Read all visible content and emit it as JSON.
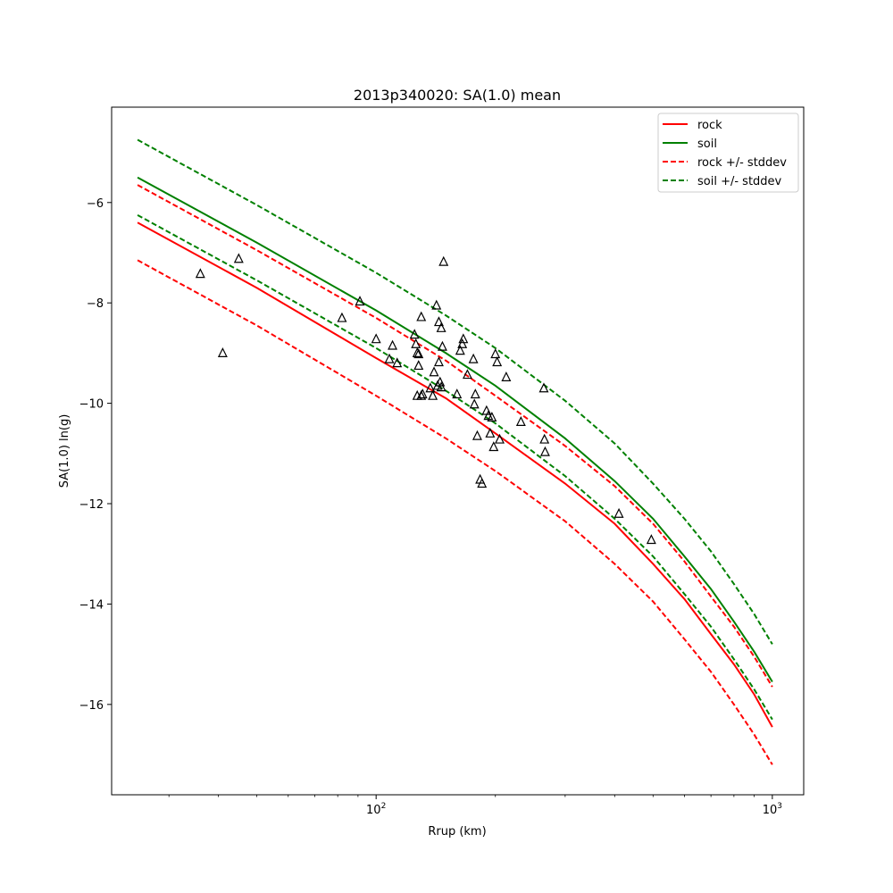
{
  "chart_data": {
    "type": "scatter",
    "title": "2013p340020: SA(1.0) mean",
    "xlabel": "Rrup (km)",
    "ylabel": "SA(1.0) ln(g)",
    "x_scale": "log",
    "xlim": [
      21.5,
      1200
    ],
    "ylim": [
      -17.8,
      -4.1
    ],
    "x_major_ticks": [
      {
        "value": 100,
        "base": "10",
        "exp": "2"
      },
      {
        "value": 1000,
        "base": "10",
        "exp": "3"
      }
    ],
    "y_ticks": [
      -16,
      -14,
      -12,
      -10,
      -8,
      -6
    ],
    "grid": false,
    "legend_placement": "top-right",
    "colors": {
      "rock": "#ff0000",
      "soil": "#008000",
      "points": "#000000"
    },
    "series": [
      {
        "name": "rock",
        "style": "solid",
        "color": "#ff0000",
        "x": [
          25,
          50,
          100,
          150,
          200,
          300,
          400,
          500,
          600,
          700,
          800,
          900,
          1000
        ],
        "y": [
          -6.4,
          -7.7,
          -9.1,
          -9.9,
          -10.6,
          -11.6,
          -12.4,
          -13.2,
          -13.9,
          -14.6,
          -15.2,
          -15.8,
          -16.45
        ]
      },
      {
        "name": "soil",
        "style": "solid",
        "color": "#008000",
        "x": [
          25,
          50,
          100,
          150,
          200,
          300,
          400,
          500,
          600,
          700,
          800,
          900,
          1000
        ],
        "y": [
          -5.5,
          -6.8,
          -8.15,
          -9.0,
          -9.65,
          -10.7,
          -11.55,
          -12.3,
          -13.05,
          -13.7,
          -14.35,
          -14.95,
          -15.55
        ]
      },
      {
        "name": "rock +/- stddev",
        "style": "dashed",
        "color": "#ff0000",
        "upper": {
          "x": [
            25,
            50,
            100,
            150,
            200,
            300,
            400,
            500,
            600,
            700,
            800,
            900,
            1000
          ],
          "y": [
            -5.65,
            -6.95,
            -8.3,
            -9.15,
            -9.85,
            -10.85,
            -11.65,
            -12.4,
            -13.15,
            -13.85,
            -14.45,
            -15.05,
            -15.65
          ]
        },
        "lower": {
          "x": [
            25,
            50,
            100,
            150,
            200,
            300,
            400,
            500,
            600,
            700,
            800,
            900,
            1000
          ],
          "y": [
            -7.15,
            -8.45,
            -9.85,
            -10.7,
            -11.35,
            -12.35,
            -13.2,
            -13.95,
            -14.7,
            -15.35,
            -16.0,
            -16.6,
            -17.2
          ]
        }
      },
      {
        "name": "soil +/- stddev",
        "style": "dashed",
        "color": "#008000",
        "upper": {
          "x": [
            25,
            50,
            100,
            150,
            200,
            300,
            400,
            500,
            600,
            700,
            800,
            900,
            1000
          ],
          "y": [
            -4.75,
            -6.05,
            -7.4,
            -8.25,
            -8.9,
            -9.95,
            -10.8,
            -11.6,
            -12.3,
            -12.95,
            -13.6,
            -14.2,
            -14.8
          ]
        },
        "lower": {
          "x": [
            25,
            50,
            100,
            150,
            200,
            300,
            400,
            500,
            600,
            700,
            800,
            900,
            1000
          ],
          "y": [
            -6.25,
            -7.55,
            -8.9,
            -9.75,
            -10.4,
            -11.45,
            -12.3,
            -13.05,
            -13.8,
            -14.45,
            -15.1,
            -15.7,
            -16.3
          ]
        }
      }
    ],
    "observations": {
      "marker": "triangle-open",
      "x": [
        36,
        45,
        41,
        82,
        91,
        100,
        108,
        110,
        113,
        125,
        126,
        127,
        128,
        128,
        127,
        130,
        130,
        131,
        137,
        139,
        140,
        142,
        144,
        145,
        146,
        146,
        144,
        147,
        148,
        143,
        160,
        163,
        165,
        166,
        170,
        176,
        177,
        178,
        180,
        183,
        185,
        190,
        192,
        194,
        196,
        198,
        200,
        202,
        205,
        213,
        232,
        265,
        266,
        267,
        410,
        495
      ],
      "y": [
        -7.42,
        -7.12,
        -9.0,
        -8.3,
        -7.97,
        -8.72,
        -9.12,
        -8.85,
        -9.2,
        -8.63,
        -8.82,
        -9.0,
        -9.25,
        -9.02,
        -9.85,
        -8.28,
        -9.85,
        -9.82,
        -9.7,
        -9.85,
        -9.38,
        -8.05,
        -8.38,
        -9.58,
        -9.68,
        -8.5,
        -9.18,
        -8.87,
        -7.18,
        -9.65,
        -9.82,
        -8.95,
        -8.82,
        -8.72,
        -9.43,
        -9.12,
        -10.02,
        -9.82,
        -10.65,
        -11.52,
        -11.6,
        -10.15,
        -10.25,
        -10.6,
        -10.28,
        -10.87,
        -9.02,
        -9.18,
        -10.72,
        -9.48,
        -10.37,
        -9.7,
        -10.72,
        -10.97,
        -12.2,
        -12.72
      ]
    }
  }
}
